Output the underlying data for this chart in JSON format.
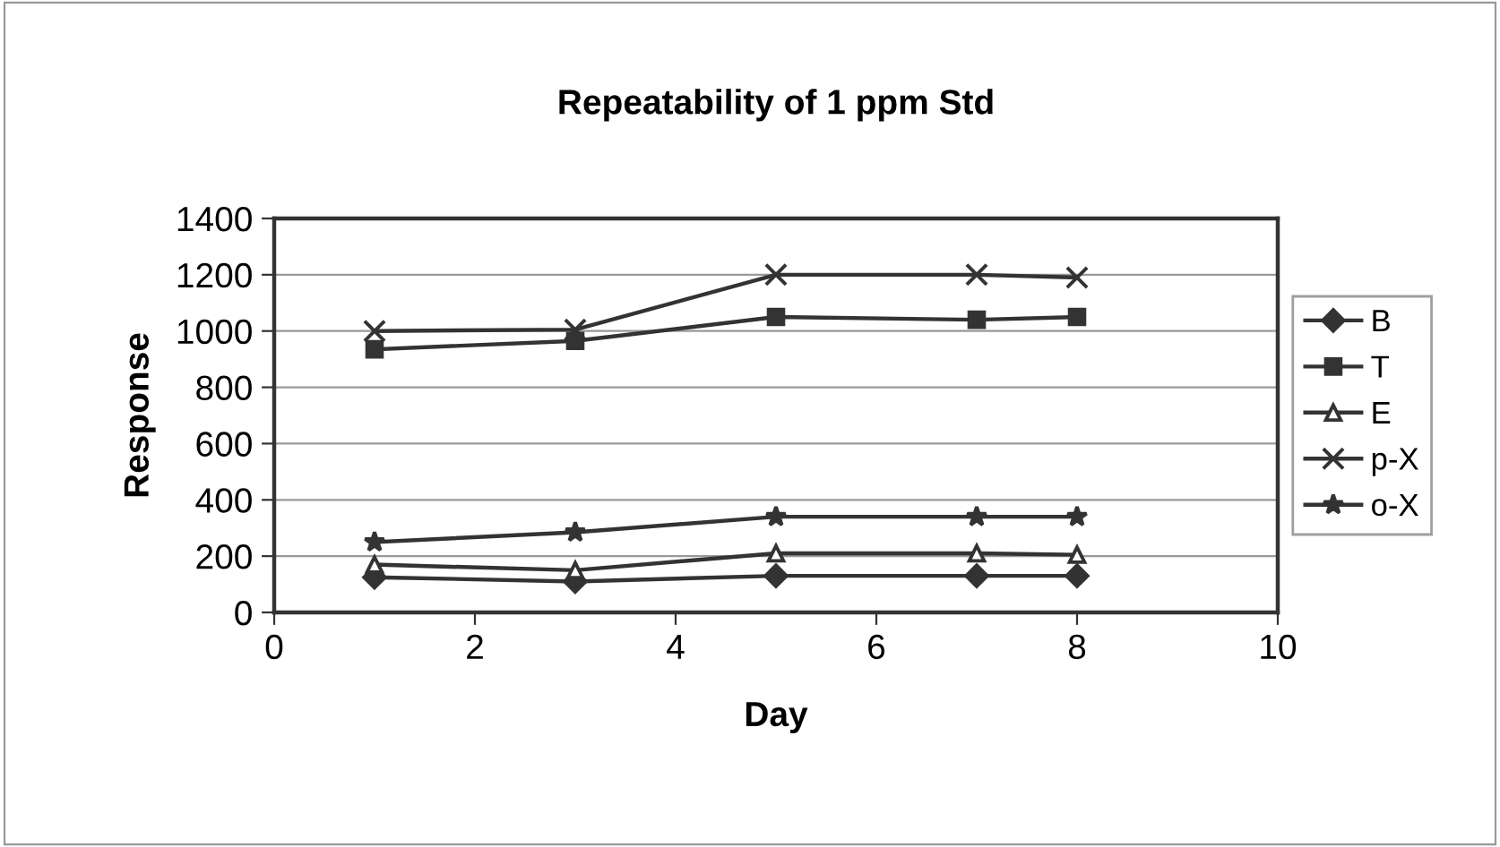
{
  "chart_data": {
    "type": "line",
    "title": "Repeatability of 1 ppm Std",
    "xlabel": "Day",
    "ylabel": "Response",
    "x": [
      1,
      3,
      5,
      7,
      8
    ],
    "series": [
      {
        "name": "B",
        "color": "#333333",
        "marker": "diamond",
        "values": [
          125,
          110,
          130,
          130,
          130
        ]
      },
      {
        "name": "T",
        "color": "#333333",
        "marker": "square",
        "values": [
          935,
          965,
          1050,
          1040,
          1050
        ]
      },
      {
        "name": "E",
        "color": "#333333",
        "marker": "triangle",
        "values": [
          170,
          150,
          210,
          210,
          205
        ]
      },
      {
        "name": "p-X",
        "color": "#333333",
        "marker": "cross",
        "values": [
          1000,
          1005,
          1200,
          1200,
          1190
        ]
      },
      {
        "name": "o-X",
        "color": "#333333",
        "marker": "star",
        "values": [
          250,
          285,
          340,
          340,
          340
        ]
      }
    ],
    "xlim": [
      0,
      10
    ],
    "xticks": [
      0,
      2,
      4,
      6,
      8,
      10
    ],
    "ylim": [
      0,
      1400
    ],
    "yticks": [
      0,
      200,
      400,
      600,
      800,
      1000,
      1200,
      1400
    ],
    "grid": "y",
    "legend": "right"
  }
}
